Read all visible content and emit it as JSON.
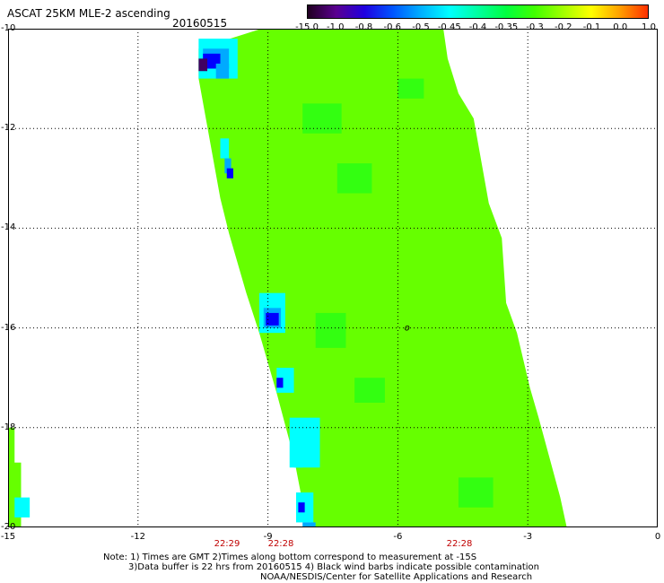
{
  "title": "ASCAT 25KM MLE-2 ascending",
  "date": "20160515",
  "colorbar": {
    "labels": [
      "-15.0",
      "-1.0",
      "-0.8",
      "-0.6",
      "-0.5",
      "-0.45",
      "-0.4",
      "-0.35",
      "-0.3",
      "-0.2",
      "-0.1",
      "0.0",
      "1.0"
    ],
    "colors": [
      "#200020",
      "#5a0090",
      "#2000e0",
      "#0055ff",
      "#00b0ff",
      "#00ffff",
      "#00ffa0",
      "#00ff40",
      "#40ff00",
      "#a0ff00",
      "#ffff00",
      "#ffa000",
      "#ff3000"
    ]
  },
  "axes": {
    "x_ticks": [
      "-15",
      "-12",
      "-9",
      "-6",
      "-3",
      "0"
    ],
    "y_ticks": [
      "-10",
      "-12",
      "-14",
      "-16",
      "-18",
      "-20"
    ],
    "xlim": [
      -15,
      0
    ],
    "ylim": [
      -20,
      -10
    ]
  },
  "time_labels": [
    "22:29",
    "22:28",
    "22:28"
  ],
  "notes": [
    "Note: 1) Times are GMT 2)Times along bottom correspond to measurement at -15S",
    "3)Data buffer is 22 hrs from 20160515 4) Black wind barbs indicate possible contamination",
    "NOAA/NESDIS/Center for Satellite Applications and Research"
  ],
  "swath": {
    "dominant_color": "#66ff00",
    "edge_colors": [
      "#00ffff",
      "#00aaff",
      "#0000ff",
      "#400060"
    ],
    "marker": "o"
  }
}
